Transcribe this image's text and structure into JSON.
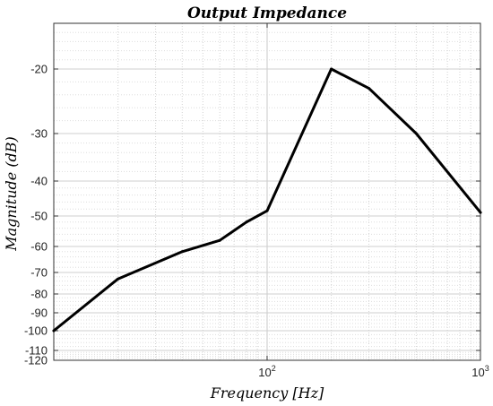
{
  "chart_data": {
    "type": "line",
    "title": "Output Impedance",
    "xlabel": "Frequency [Hz]",
    "ylabel": "Magnitude (dB)",
    "x_scale": "log",
    "y_scale": "custom",
    "xlim": [
      10,
      1000
    ],
    "ylim": [
      -120,
      -10
    ],
    "grid": true,
    "minor_grid": true,
    "legend": "none",
    "line_color": "#000000",
    "x_ticks": [
      {
        "base": "10",
        "exp": "2",
        "value": 100
      },
      {
        "base": "10",
        "exp": "3",
        "value": 1000
      }
    ],
    "y_ticks": [
      {
        "value": -20,
        "label": "-20"
      },
      {
        "value": -30,
        "label": "-30"
      },
      {
        "value": -40,
        "label": "-40"
      },
      {
        "value": -50,
        "label": "-50"
      },
      {
        "value": -60,
        "label": "-60"
      },
      {
        "value": -70,
        "label": "-70"
      },
      {
        "value": -80,
        "label": "-80"
      },
      {
        "value": -90,
        "label": "-90"
      },
      {
        "value": -100,
        "label": "-100"
      },
      {
        "value": -110,
        "label": "-110"
      },
      {
        "value": -120,
        "label": "-120"
      }
    ],
    "x": [
      10,
      20,
      40,
      60,
      80,
      100,
      200,
      300,
      500,
      1000
    ],
    "y": [
      -100,
      -73,
      -62,
      -58,
      -52,
      -48.5,
      -20,
      -23,
      -30,
      -49
    ]
  }
}
